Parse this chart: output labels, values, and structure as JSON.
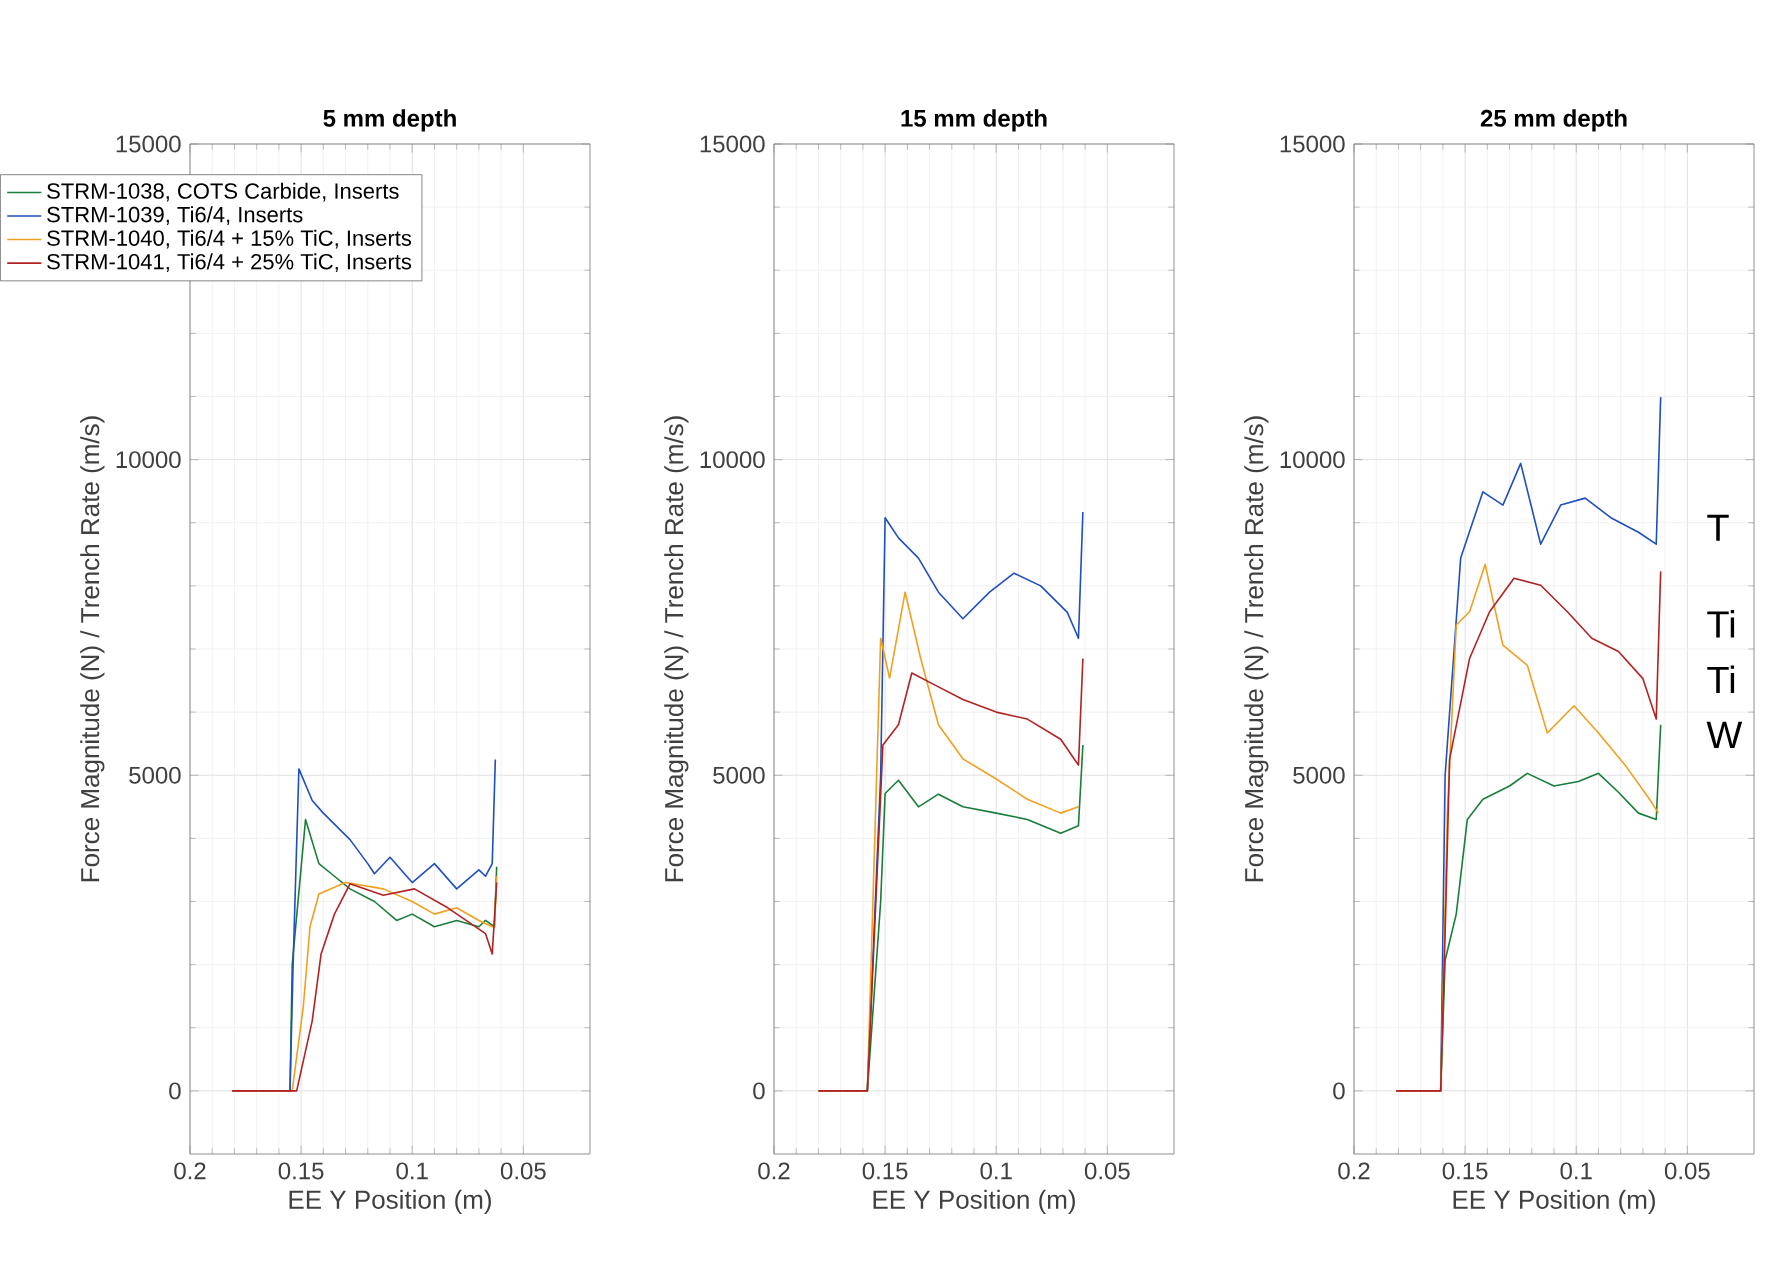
{
  "chart_data": [
    {
      "type": "line",
      "title": "5 mm depth",
      "xlabel": "EE Y Position (m)",
      "ylabel": "Force Magnitude (N) / Trench Rate (m/s)",
      "xlim": [
        0.2,
        0.02
      ],
      "ylim": [
        -1000,
        15000
      ],
      "xticks": [
        0.2,
        0.15,
        0.1,
        0.05
      ],
      "yticks": [
        0,
        5000,
        10000,
        15000
      ],
      "grid": true,
      "legend": "top left",
      "series": [
        {
          "name": "STRM-1038, COTS Carbide, Inserts",
          "color": "#1a7d3a",
          "x": [
            0.181,
            0.165,
            0.155,
            0.154,
            0.148,
            0.142,
            0.135,
            0.128,
            0.117,
            0.107,
            0.1,
            0.09,
            0.08,
            0.07,
            0.067,
            0.063,
            0.062
          ],
          "values": [
            0,
            0,
            0,
            2000,
            4300,
            3600,
            3400,
            3200,
            3000,
            2700,
            2800,
            2600,
            2700,
            2600,
            2700,
            2600,
            3550
          ]
        },
        {
          "name": "STRM-1039, Ti6/4, Inserts",
          "color": "#1f4fbf",
          "x": [
            0.181,
            0.165,
            0.155,
            0.1536,
            0.151,
            0.145,
            0.14,
            0.128,
            0.12,
            0.117,
            0.11,
            0.1,
            0.09,
            0.08,
            0.07,
            0.067,
            0.064,
            0.0626
          ],
          "values": [
            0,
            0,
            0,
            2000,
            5100,
            4600,
            4400,
            3980,
            3600,
            3440,
            3700,
            3300,
            3600,
            3200,
            3500,
            3400,
            3600,
            5250
          ]
        },
        {
          "name": "STRM-1040, Ti6/4 + 15% TiC, Inserts",
          "color": "#f0a020",
          "x": [
            0.181,
            0.165,
            0.154,
            0.149,
            0.146,
            0.142,
            0.13,
            0.113,
            0.1,
            0.09,
            0.08,
            0.07,
            0.064,
            0.063,
            0.062
          ],
          "values": [
            0,
            0,
            0,
            1340,
            2600,
            3120,
            3300,
            3200,
            3000,
            2800,
            2900,
            2700,
            2600,
            2600,
            3400
          ]
        },
        {
          "name": "STRM-1041, Ti6/4 + 25% TiC, Inserts",
          "color": "#b22222",
          "x": [
            0.181,
            0.165,
            0.152,
            0.145,
            0.141,
            0.135,
            0.128,
            0.113,
            0.099,
            0.084,
            0.067,
            0.064,
            0.062
          ],
          "values": [
            0,
            0,
            0,
            1110,
            2170,
            2800,
            3280,
            3100,
            3200,
            2900,
            2490,
            2170,
            3300
          ]
        }
      ]
    },
    {
      "type": "line",
      "title": "15 mm depth",
      "xlabel": "EE Y Position (m)",
      "ylabel": "Force Magnitude (N) / Trench Rate (m/s)",
      "xlim": [
        0.2,
        0.02
      ],
      "ylim": [
        -1000,
        15000
      ],
      "xticks": [
        0.2,
        0.15,
        0.1,
        0.05
      ],
      "yticks": [
        0,
        5000,
        10000,
        15000
      ],
      "grid": true,
      "series": [
        {
          "color": "#1a7d3a",
          "x": [
            0.18,
            0.158,
            0.152,
            0.15,
            0.144,
            0.135,
            0.126,
            0.115,
            0.1,
            0.086,
            0.071,
            0.063,
            0.061
          ],
          "values": [
            0,
            0,
            3000,
            4710,
            4920,
            4500,
            4700,
            4500,
            4400,
            4300,
            4080,
            4200,
            5480
          ]
        },
        {
          "color": "#1f4fbf",
          "x": [
            0.18,
            0.158,
            0.152,
            0.15,
            0.144,
            0.135,
            0.126,
            0.115,
            0.103,
            0.092,
            0.08,
            0.068,
            0.063,
            0.061
          ],
          "values": [
            0,
            0,
            5000,
            9080,
            8760,
            8440,
            7900,
            7480,
            7900,
            8200,
            8000,
            7580,
            7170,
            9170
          ]
        },
        {
          "color": "#f0a020",
          "x": [
            0.18,
            0.158,
            0.152,
            0.148,
            0.141,
            0.134,
            0.126,
            0.115,
            0.1,
            0.086,
            0.071,
            0.063
          ],
          "values": [
            0,
            0,
            7170,
            6540,
            7900,
            6850,
            5800,
            5260,
            4940,
            4620,
            4400,
            4500
          ]
        },
        {
          "color": "#b22222",
          "x": [
            0.18,
            0.158,
            0.151,
            0.144,
            0.138,
            0.126,
            0.115,
            0.1,
            0.086,
            0.071,
            0.063,
            0.061
          ],
          "values": [
            0,
            0,
            5480,
            5800,
            6620,
            6400,
            6200,
            6000,
            5890,
            5570,
            5160,
            6850
          ]
        }
      ]
    },
    {
      "type": "line",
      "title": "25 mm depth",
      "xlabel": "EE Y Position (m)",
      "ylabel": "Force Magnitude (N) / Trench Rate (m/s)",
      "xlim": [
        0.2,
        0.02
      ],
      "ylim": [
        -1000,
        15000
      ],
      "xticks": [
        0.2,
        0.15,
        0.1,
        0.05
      ],
      "yticks": [
        0,
        5000,
        10000,
        15000
      ],
      "grid": true,
      "annotations": [
        "T",
        "Ti",
        "Ti",
        "W"
      ],
      "series": [
        {
          "color": "#1a7d3a",
          "x": [
            0.181,
            0.161,
            0.159,
            0.154,
            0.149,
            0.142,
            0.13,
            0.122,
            0.11,
            0.099,
            0.09,
            0.081,
            0.072,
            0.064,
            0.062
          ],
          "values": [
            0,
            0,
            2070,
            2800,
            4300,
            4620,
            4830,
            5030,
            4830,
            4900,
            5030,
            4730,
            4400,
            4300,
            5800
          ]
        },
        {
          "color": "#1f4fbf",
          "x": [
            0.181,
            0.161,
            0.159,
            0.152,
            0.142,
            0.133,
            0.125,
            0.116,
            0.107,
            0.096,
            0.084,
            0.072,
            0.064,
            0.062
          ],
          "values": [
            0,
            0,
            5000,
            8440,
            9490,
            9280,
            9940,
            8660,
            9280,
            9390,
            9070,
            8850,
            8660,
            10990
          ]
        },
        {
          "color": "#f0a020",
          "x": [
            0.181,
            0.161,
            0.158,
            0.154,
            0.148,
            0.141,
            0.133,
            0.122,
            0.113,
            0.101,
            0.09,
            0.078,
            0.067,
            0.063
          ],
          "values": [
            0,
            0,
            4400,
            7380,
            7590,
            8340,
            7060,
            6740,
            5670,
            6100,
            5670,
            5160,
            4620,
            4400
          ]
        },
        {
          "color": "#b22222",
          "x": [
            0.181,
            0.161,
            0.159,
            0.157,
            0.148,
            0.139,
            0.128,
            0.116,
            0.104,
            0.093,
            0.081,
            0.07,
            0.064,
            0.062
          ],
          "values": [
            0,
            0,
            2500,
            5250,
            6850,
            7590,
            8120,
            8010,
            7590,
            7170,
            6960,
            6530,
            5890,
            8230
          ]
        }
      ]
    }
  ]
}
